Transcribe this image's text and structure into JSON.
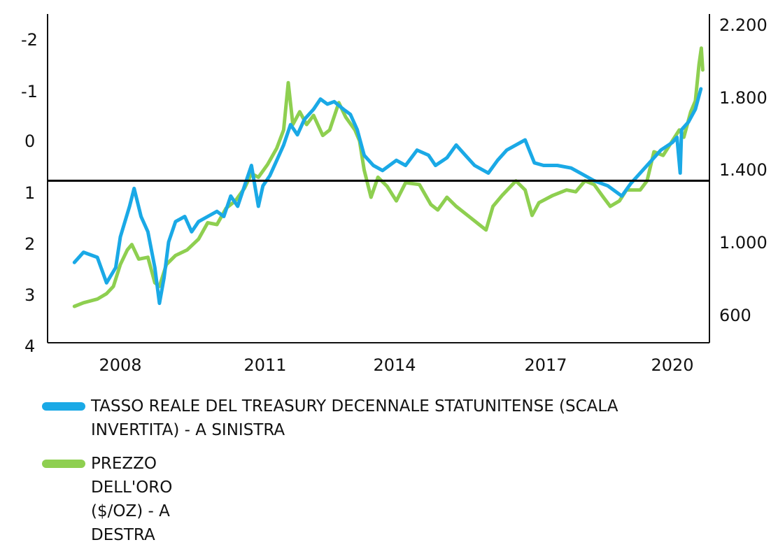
{
  "chart_data": {
    "type": "line",
    "title": "",
    "xlabel": "",
    "x_ticks": [
      "2008",
      "2011",
      "2014",
      "2017",
      "2020"
    ],
    "y_left": {
      "label": "",
      "ticks": [
        "-2",
        "-1",
        "0",
        "1",
        "2",
        "3",
        "4"
      ],
      "range": [
        -2.4,
        4
      ],
      "inverted": true
    },
    "y_right": {
      "label": "",
      "ticks": [
        "600",
        "1.000",
        "1.400",
        "1.800",
        "2.200"
      ],
      "range": [
        450,
        2250
      ]
    },
    "reference_line": {
      "axis": "left",
      "value": 0.8
    },
    "legend_position": "bottom-left",
    "colors": {
      "real_yield": "#1aa9e6",
      "gold": "#8ecf50",
      "reference": "#000000"
    },
    "series": [
      {
        "name": "TASSO REALE DEL TREASURY DECENNALE STATUNITENSE (SCALA INVERTITA) - A SINISTRA",
        "axis": "left",
        "color": "#1aa9e6",
        "points": [
          [
            2007.0,
            2.4
          ],
          [
            2007.2,
            2.2
          ],
          [
            2007.5,
            2.3
          ],
          [
            2007.7,
            2.8
          ],
          [
            2007.9,
            2.5
          ],
          [
            2008.0,
            1.9
          ],
          [
            2008.2,
            1.3
          ],
          [
            2008.3,
            0.95
          ],
          [
            2008.45,
            1.5
          ],
          [
            2008.6,
            1.8
          ],
          [
            2008.75,
            2.5
          ],
          [
            2008.85,
            3.2
          ],
          [
            2008.95,
            2.7
          ],
          [
            2009.05,
            2.0
          ],
          [
            2009.2,
            1.6
          ],
          [
            2009.4,
            1.5
          ],
          [
            2009.55,
            1.8
          ],
          [
            2009.7,
            1.6
          ],
          [
            2009.9,
            1.5
          ],
          [
            2010.1,
            1.4
          ],
          [
            2010.25,
            1.5
          ],
          [
            2010.4,
            1.1
          ],
          [
            2010.55,
            1.3
          ],
          [
            2010.7,
            0.9
          ],
          [
            2010.85,
            0.5
          ],
          [
            2011.0,
            1.3
          ],
          [
            2011.1,
            0.9
          ],
          [
            2011.25,
            0.7
          ],
          [
            2011.4,
            0.4
          ],
          [
            2011.55,
            0.1
          ],
          [
            2011.7,
            -0.3
          ],
          [
            2011.85,
            -0.1
          ],
          [
            2012.0,
            -0.4
          ],
          [
            2012.2,
            -0.6
          ],
          [
            2012.35,
            -0.8
          ],
          [
            2012.5,
            -0.7
          ],
          [
            2012.65,
            -0.75
          ],
          [
            2012.85,
            -0.6
          ],
          [
            2013.0,
            -0.5
          ],
          [
            2013.15,
            -0.2
          ],
          [
            2013.3,
            0.3
          ],
          [
            2013.5,
            0.5
          ],
          [
            2013.7,
            0.6
          ],
          [
            2014.0,
            0.4
          ],
          [
            2014.2,
            0.5
          ],
          [
            2014.45,
            0.2
          ],
          [
            2014.7,
            0.3
          ],
          [
            2014.85,
            0.5
          ],
          [
            2015.1,
            0.35
          ],
          [
            2015.3,
            0.1
          ],
          [
            2015.5,
            0.3
          ],
          [
            2015.7,
            0.5
          ],
          [
            2016.0,
            0.65
          ],
          [
            2016.2,
            0.4
          ],
          [
            2016.4,
            0.2
          ],
          [
            2016.6,
            0.1
          ],
          [
            2016.8,
            0.0
          ],
          [
            2017.0,
            0.45
          ],
          [
            2017.2,
            0.5
          ],
          [
            2017.5,
            0.5
          ],
          [
            2017.8,
            0.55
          ],
          [
            2018.0,
            0.65
          ],
          [
            2018.3,
            0.8
          ],
          [
            2018.6,
            0.9
          ],
          [
            2018.9,
            1.1
          ],
          [
            2019.1,
            0.85
          ],
          [
            2019.35,
            0.6
          ],
          [
            2019.6,
            0.35
          ],
          [
            2019.75,
            0.2
          ],
          [
            2020.0,
            0.05
          ],
          [
            2020.1,
            -0.05
          ],
          [
            2020.17,
            0.65
          ],
          [
            2020.2,
            -0.2
          ],
          [
            2020.35,
            -0.35
          ],
          [
            2020.5,
            -0.6
          ],
          [
            2020.62,
            -1.0
          ]
        ]
      },
      {
        "name": "PREZZO DELL'ORO ($/OZ) - A DESTRA",
        "axis": "right",
        "color": "#8ecf50",
        "points": [
          [
            2007.0,
            650
          ],
          [
            2007.2,
            670
          ],
          [
            2007.5,
            690
          ],
          [
            2007.7,
            720
          ],
          [
            2007.85,
            760
          ],
          [
            2008.0,
            880
          ],
          [
            2008.15,
            960
          ],
          [
            2008.25,
            990
          ],
          [
            2008.4,
            910
          ],
          [
            2008.6,
            920
          ],
          [
            2008.75,
            780
          ],
          [
            2008.85,
            760
          ],
          [
            2009.0,
            880
          ],
          [
            2009.2,
            930
          ],
          [
            2009.45,
            960
          ],
          [
            2009.7,
            1020
          ],
          [
            2009.9,
            1110
          ],
          [
            2010.1,
            1100
          ],
          [
            2010.3,
            1190
          ],
          [
            2010.5,
            1230
          ],
          [
            2010.7,
            1300
          ],
          [
            2010.85,
            1380
          ],
          [
            2011.0,
            1360
          ],
          [
            2011.2,
            1430
          ],
          [
            2011.4,
            1520
          ],
          [
            2011.55,
            1620
          ],
          [
            2011.65,
            1880
          ],
          [
            2011.75,
            1650
          ],
          [
            2011.9,
            1720
          ],
          [
            2012.05,
            1650
          ],
          [
            2012.2,
            1700
          ],
          [
            2012.4,
            1590
          ],
          [
            2012.55,
            1620
          ],
          [
            2012.75,
            1770
          ],
          [
            2012.9,
            1690
          ],
          [
            2013.1,
            1620
          ],
          [
            2013.2,
            1560
          ],
          [
            2013.3,
            1400
          ],
          [
            2013.45,
            1250
          ],
          [
            2013.6,
            1360
          ],
          [
            2013.8,
            1310
          ],
          [
            2014.0,
            1230
          ],
          [
            2014.2,
            1330
          ],
          [
            2014.5,
            1320
          ],
          [
            2014.75,
            1210
          ],
          [
            2014.9,
            1180
          ],
          [
            2015.1,
            1250
          ],
          [
            2015.3,
            1200
          ],
          [
            2015.6,
            1140
          ],
          [
            2015.8,
            1100
          ],
          [
            2015.95,
            1070
          ],
          [
            2016.1,
            1200
          ],
          [
            2016.3,
            1260
          ],
          [
            2016.6,
            1340
          ],
          [
            2016.8,
            1290
          ],
          [
            2016.95,
            1150
          ],
          [
            2017.1,
            1220
          ],
          [
            2017.4,
            1260
          ],
          [
            2017.7,
            1290
          ],
          [
            2017.9,
            1280
          ],
          [
            2018.1,
            1340
          ],
          [
            2018.3,
            1320
          ],
          [
            2018.5,
            1250
          ],
          [
            2018.65,
            1200
          ],
          [
            2018.85,
            1230
          ],
          [
            2019.0,
            1290
          ],
          [
            2019.3,
            1290
          ],
          [
            2019.45,
            1340
          ],
          [
            2019.6,
            1500
          ],
          [
            2019.8,
            1480
          ],
          [
            2020.0,
            1560
          ],
          [
            2020.15,
            1620
          ],
          [
            2020.25,
            1580
          ],
          [
            2020.4,
            1720
          ],
          [
            2020.5,
            1780
          ],
          [
            2020.58,
            1980
          ],
          [
            2020.63,
            2070
          ],
          [
            2020.66,
            1950
          ]
        ]
      }
    ]
  }
}
